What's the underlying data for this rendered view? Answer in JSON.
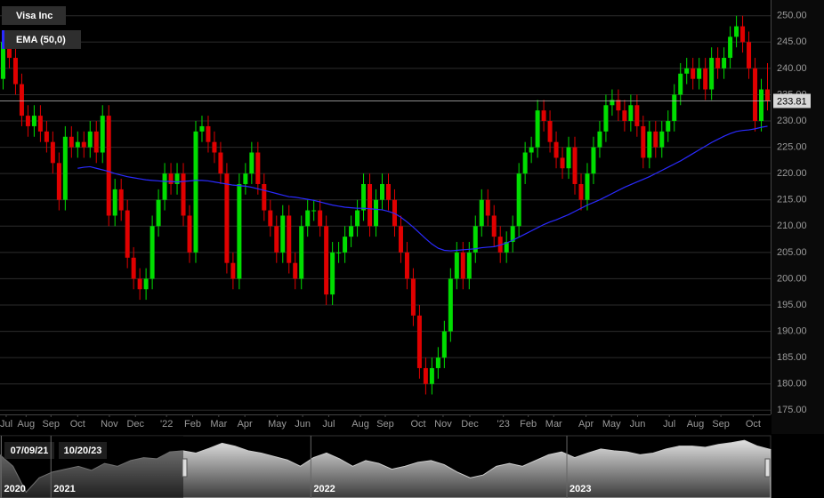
{
  "chart_data": [
    {
      "type": "candlestick",
      "series": [
        {
          "name": "Visa Inc",
          "color_up": "#00dd00",
          "color_down": "#e00000",
          "open": [
            238,
            245,
            242,
            237,
            231,
            229,
            231,
            228,
            226,
            222,
            215,
            227,
            225,
            226,
            225,
            228,
            224,
            231,
            212,
            217,
            213,
            204,
            200,
            198,
            200,
            210,
            215,
            220,
            218,
            220,
            212,
            205,
            228,
            229,
            226,
            224,
            220,
            203,
            200,
            218,
            220,
            224,
            218,
            213,
            210,
            205,
            212,
            203,
            200,
            210,
            213,
            213,
            210,
            197,
            205,
            205,
            208,
            210,
            213,
            218,
            210,
            215,
            218,
            215,
            210,
            205,
            200,
            193,
            183,
            180,
            183,
            185,
            190,
            200,
            205,
            200,
            205,
            210,
            215,
            212,
            208,
            205,
            207,
            210,
            220,
            224,
            225,
            232,
            230,
            226,
            223,
            221,
            225,
            218,
            215,
            220,
            225,
            228,
            233,
            234,
            232,
            230,
            233,
            229,
            223,
            228,
            225,
            228,
            230,
            235,
            239,
            240,
            238,
            240,
            236,
            242,
            240,
            242,
            246,
            248,
            245,
            240,
            230,
            236
          ],
          "high": [
            247,
            247,
            244,
            239,
            233,
            233,
            233,
            230,
            228,
            224,
            229,
            229,
            228,
            228,
            230,
            230,
            233,
            233,
            219,
            219,
            215,
            206,
            202,
            202,
            212,
            217,
            222,
            222,
            222,
            222,
            214,
            230,
            231,
            231,
            228,
            226,
            222,
            205,
            220,
            222,
            226,
            226,
            220,
            215,
            212,
            214,
            214,
            205,
            212,
            215,
            215,
            215,
            212,
            207,
            207,
            210,
            212,
            215,
            220,
            220,
            217,
            220,
            220,
            217,
            212,
            207,
            202,
            195,
            185,
            185,
            187,
            192,
            202,
            207,
            207,
            207,
            212,
            217,
            217,
            214,
            210,
            209,
            212,
            222,
            226,
            227,
            234,
            234,
            232,
            228,
            225,
            227,
            227,
            220,
            222,
            227,
            230,
            235,
            236,
            236,
            234,
            235,
            235,
            231,
            230,
            230,
            230,
            232,
            237,
            241,
            242,
            242,
            242,
            242,
            244,
            244,
            244,
            248,
            250,
            250,
            247,
            242,
            238,
            241
          ],
          "low": [
            236,
            240,
            235,
            229,
            227,
            227,
            226,
            224,
            220,
            213,
            213,
            223,
            223,
            223,
            223,
            222,
            222,
            210,
            210,
            211,
            202,
            198,
            196,
            196,
            198,
            208,
            213,
            216,
            216,
            210,
            203,
            203,
            226,
            224,
            222,
            218,
            201,
            198,
            198,
            216,
            218,
            216,
            211,
            208,
            203,
            203,
            201,
            198,
            198,
            208,
            211,
            208,
            195,
            195,
            203,
            203,
            206,
            208,
            211,
            208,
            208,
            213,
            213,
            208,
            203,
            198,
            191,
            181,
            178,
            178,
            181,
            183,
            188,
            198,
            198,
            198,
            203,
            208,
            210,
            206,
            203,
            203,
            205,
            208,
            218,
            222,
            223,
            228,
            224,
            221,
            219,
            219,
            216,
            213,
            213,
            218,
            223,
            226,
            231,
            230,
            228,
            228,
            227,
            221,
            221,
            223,
            223,
            226,
            228,
            233,
            237,
            236,
            236,
            234,
            234,
            238,
            238,
            240,
            244,
            243,
            238,
            228,
            228,
            232
          ],
          "close": [
            245,
            242,
            237,
            231,
            229,
            231,
            228,
            226,
            222,
            215,
            227,
            225,
            226,
            225,
            228,
            224,
            231,
            212,
            217,
            213,
            204,
            200,
            198,
            200,
            210,
            215,
            220,
            218,
            220,
            212,
            205,
            228,
            229,
            226,
            224,
            220,
            203,
            200,
            218,
            220,
            224,
            218,
            213,
            210,
            205,
            212,
            203,
            200,
            210,
            213,
            213,
            210,
            197,
            205,
            205,
            208,
            210,
            213,
            218,
            210,
            215,
            218,
            215,
            210,
            205,
            200,
            193,
            183,
            180,
            183,
            185,
            190,
            200,
            205,
            200,
            205,
            210,
            215,
            212,
            208,
            205,
            207,
            210,
            220,
            224,
            225,
            232,
            230,
            226,
            223,
            221,
            225,
            218,
            215,
            220,
            225,
            228,
            233,
            234,
            232,
            230,
            233,
            229,
            223,
            228,
            225,
            228,
            230,
            235,
            239,
            240,
            238,
            240,
            236,
            242,
            240,
            242,
            246,
            248,
            245,
            240,
            230,
            236,
            233.81
          ]
        },
        {
          "name": "EMA (50,0)",
          "type": "line",
          "color": "#2a2aff",
          "values": [
            null,
            null,
            null,
            null,
            null,
            null,
            null,
            null,
            null,
            null,
            null,
            null,
            221,
            221.2,
            221.3,
            221,
            220.7,
            220.4,
            220,
            219.7,
            219.4,
            219.2,
            219,
            218.8,
            218.7,
            218.6,
            218.5,
            218.5,
            218.4,
            218.5,
            218.6,
            218.7,
            218.7,
            218.6,
            218.4,
            218.2,
            218,
            217.8,
            217.7,
            217.6,
            217.4,
            217.1,
            216.8,
            216.5,
            216.2,
            215.9,
            215.6,
            215.5,
            215.3,
            215.1,
            214.9,
            214.6,
            214.3,
            214,
            213.8,
            213.6,
            213.5,
            213.4,
            213.4,
            213.3,
            213.2,
            213.1,
            212.8,
            212.4,
            211.7,
            210.8,
            209.8,
            208.7,
            207.6,
            206.6,
            205.8,
            205.4,
            205.3,
            205.4,
            205.5,
            205.6,
            205.7,
            205.9,
            206,
            206.1,
            206.4,
            206.8,
            207.3,
            207.9,
            208.5,
            209.1,
            209.7,
            210.3,
            210.8,
            211.2,
            211.7,
            212.2,
            212.8,
            213.4,
            214,
            214.5,
            215,
            215.6,
            216.2,
            216.8,
            217.4,
            217.9,
            218.4,
            218.9,
            219.4,
            220,
            220.6,
            221.2,
            221.8,
            222.4,
            223.1,
            223.8,
            224.5,
            225.2,
            225.9,
            226.5,
            227.1,
            227.6,
            228,
            228.2,
            228.3,
            228.5,
            228.8,
            229
          ]
        }
      ],
      "xlim": [
        0,
        124
      ],
      "xticks": [
        {
          "value": 1,
          "label": "Jul"
        },
        {
          "value": 4.2,
          "label": "Aug"
        },
        {
          "value": 8.2,
          "label": "Sep"
        },
        {
          "value": 12.5,
          "label": "Oct"
        },
        {
          "value": 17.6,
          "label": "Nov"
        },
        {
          "value": 21.8,
          "label": "Dec"
        },
        {
          "value": 26.8,
          "label": "'22"
        },
        {
          "value": 31,
          "label": "Feb"
        },
        {
          "value": 35.2,
          "label": "Mar"
        },
        {
          "value": 39.4,
          "label": "Apr"
        },
        {
          "value": 44.6,
          "label": "May"
        },
        {
          "value": 48.7,
          "label": "Jun"
        },
        {
          "value": 52.9,
          "label": "Jul"
        },
        {
          "value": 58,
          "label": "Aug"
        },
        {
          "value": 62,
          "label": "Sep"
        },
        {
          "value": 67.3,
          "label": "Oct"
        },
        {
          "value": 71.3,
          "label": "Nov"
        },
        {
          "value": 75.6,
          "label": "Dec"
        },
        {
          "value": 81,
          "label": "'23"
        },
        {
          "value": 85,
          "label": "Feb"
        },
        {
          "value": 89.1,
          "label": "Mar"
        },
        {
          "value": 94.3,
          "label": "Apr"
        },
        {
          "value": 98.4,
          "label": "May"
        },
        {
          "value": 102.6,
          "label": "Jun"
        },
        {
          "value": 107.7,
          "label": "Jul"
        },
        {
          "value": 111.9,
          "label": "Aug"
        },
        {
          "value": 116,
          "label": "Sep"
        },
        {
          "value": 121.2,
          "label": "Oct"
        }
      ],
      "ylim": [
        174.2,
        253
      ],
      "yticks": [
        {
          "value": 175,
          "label": "175.00"
        },
        {
          "value": 180,
          "label": "180.00"
        },
        {
          "value": 185,
          "label": "185.00"
        },
        {
          "value": 190,
          "label": "190.00"
        },
        {
          "value": 195,
          "label": "195.00"
        },
        {
          "value": 200,
          "label": "200.00"
        },
        {
          "value": 205,
          "label": "205.00"
        },
        {
          "value": 210,
          "label": "210.00"
        },
        {
          "value": 215,
          "label": "215.00"
        },
        {
          "value": 220,
          "label": "220.00"
        },
        {
          "value": 225,
          "label": "225.00"
        },
        {
          "value": 230,
          "label": "230.00"
        },
        {
          "value": 235,
          "label": "235.00"
        },
        {
          "value": 240,
          "label": "240.00"
        },
        {
          "value": 245,
          "label": "245.00"
        },
        {
          "value": 250,
          "label": "250.00"
        }
      ],
      "grid": true
    },
    {
      "type": "area",
      "color": "#8a8a8a",
      "values": [
        225,
        205,
        160,
        185,
        195,
        200,
        205,
        198,
        210,
        205,
        215,
        220,
        218,
        230,
        232,
        228,
        236,
        245,
        240,
        232,
        228,
        222,
        216,
        205,
        220,
        228,
        218,
        205,
        215,
        210,
        200,
        205,
        212,
        215,
        208,
        195,
        185,
        190,
        205,
        210,
        205,
        215,
        225,
        230,
        220,
        228,
        235,
        232,
        230,
        225,
        228,
        235,
        240,
        240,
        238,
        243,
        246,
        250,
        240,
        234
      ],
      "xlim": [
        0,
        59
      ],
      "ylim": [
        150,
        258
      ],
      "xticks": [
        {
          "value": 0.1,
          "label": "2020"
        },
        {
          "value": 3.9,
          "label": "2021"
        },
        {
          "value": 23.8,
          "label": "2022"
        },
        {
          "value": 43.4,
          "label": "2023"
        }
      ],
      "range_labels": [
        "07/09/21",
        "10/20/23"
      ]
    }
  ]
}
